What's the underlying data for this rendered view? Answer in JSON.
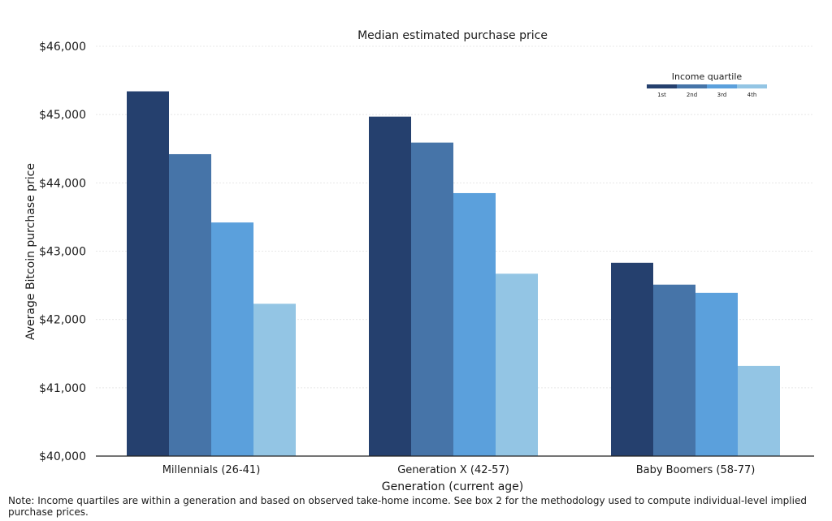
{
  "chart_data": {
    "type": "bar",
    "title": "Median estimated purchase price",
    "xlabel": "Generation (current age)",
    "ylabel": "Average Bitcoin purchase price",
    "categories": [
      "Millennials (26-41)",
      "Generation X (42-57)",
      "Baby Boomers (58-77)"
    ],
    "ylim": [
      40000,
      46000
    ],
    "yticks": [
      40000,
      41000,
      42000,
      43000,
      44000,
      45000,
      46000
    ],
    "ytick_labels": [
      "$40,000",
      "$41,000",
      "$42,000",
      "$43,000",
      "$44,000",
      "$45,000",
      "$46,000"
    ],
    "grid": true,
    "legend": {
      "title": "Income quartile",
      "placement": "top-right"
    },
    "series": [
      {
        "name": "1st",
        "color": "#25406e",
        "values": [
          45340,
          44970,
          42830
        ]
      },
      {
        "name": "2nd",
        "color": "#4674a8",
        "values": [
          44420,
          44590,
          42510
        ]
      },
      {
        "name": "3rd",
        "color": "#5ba0dc",
        "values": [
          43420,
          43850,
          42390
        ]
      },
      {
        "name": "4th",
        "color": "#93c5e4",
        "values": [
          42230,
          42670,
          41320
        ]
      }
    ]
  },
  "note": "Note: Income quartiles are within a generation and based on observed take-home income. See box 2 for the methodology used to compute individual-level implied purchase prices."
}
